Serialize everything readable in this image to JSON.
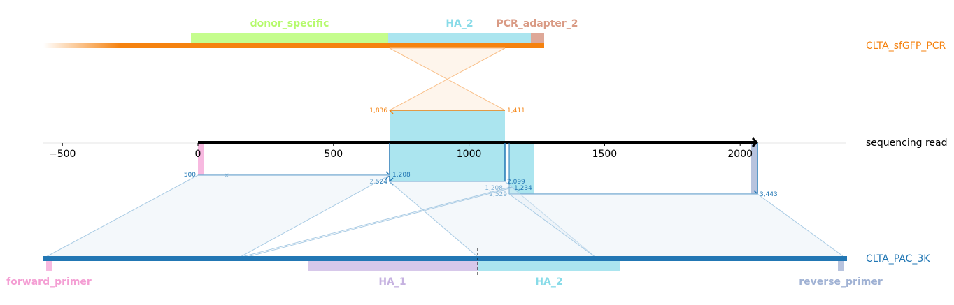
{
  "axis": {
    "ticks": [
      -500,
      0,
      500,
      1000,
      1500,
      2000
    ],
    "tick_labels": [
      "−500",
      "0",
      "500",
      "1000",
      "1500",
      "2000"
    ],
    "range": [
      -570,
      2385
    ]
  },
  "sequences": {
    "top": {
      "name": "CLTA_sfGFP_PCR",
      "color": "#f5820f"
    },
    "read": {
      "name": "sequencing read",
      "color": "#000000"
    },
    "bottom": {
      "name": "CLTA_PAC_3K",
      "color": "#2277b4"
    }
  },
  "top_features": [
    {
      "name": "donor_specific",
      "color": "#c5fd8d",
      "label_color": "#b5fa6b"
    },
    {
      "name": "HA_2",
      "color": "#abe5ef",
      "label_color": "#88dbe8"
    },
    {
      "name": "PCR_adapter_2",
      "color": "#dea898",
      "label_color": "#d99a84"
    }
  ],
  "bottom_features": [
    {
      "name": "forward_primer",
      "color": "#f7b9e0",
      "label_color": "#f49fd4"
    },
    {
      "name": "HA_1",
      "color": "#d7c8ea",
      "label_color": "#c6b2e0"
    },
    {
      "name": "HA_2",
      "color": "#abe5ef",
      "label_color": "#88dbe8"
    },
    {
      "name": "reverse_primer",
      "color": "#b7c3de",
      "label_color": "#a0b2d4"
    }
  ],
  "coordinates": {
    "top_left": "1,836",
    "top_right": "1,411",
    "pink_start": "500",
    "seg1_end": "1,208",
    "seg2_end": "2,524",
    "mid_a": "2,099",
    "mid_b": "1,208",
    "mid_c": "1,234",
    "mid_d": "2,529",
    "right_end": "3,443"
  }
}
